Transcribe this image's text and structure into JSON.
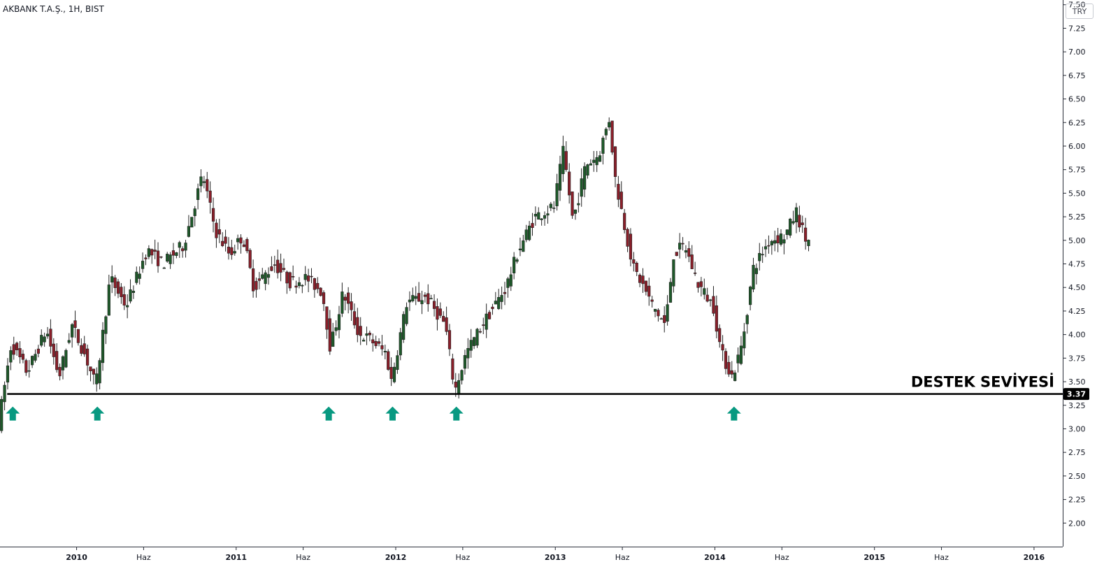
{
  "header": {
    "symbol": "AKBANK T.A.Ş., 1H, BIST",
    "currency": "TRY"
  },
  "colors": {
    "up": "#1e5a2a",
    "down": "#8b1f2a",
    "wick": "#222222",
    "arrow": "#089981",
    "support": "#000000",
    "axis": "#d1d4dc"
  },
  "chart_data": {
    "type": "candlestick",
    "title": "",
    "y_ticks": [
      "2.00",
      "2.25",
      "2.50",
      "2.75",
      "3.00",
      "3.25",
      "3.50",
      "3.75",
      "4.00",
      "4.25",
      "4.50",
      "4.75",
      "5.00",
      "5.25",
      "5.50",
      "5.75",
      "6.00",
      "6.25",
      "6.50",
      "6.75",
      "7.00",
      "7.25",
      "7.50"
    ],
    "ylim": [
      1.75,
      7.55
    ],
    "x_ticks": [
      {
        "label": "2010",
        "t": 2010.0,
        "year": true
      },
      {
        "label": "Haz",
        "t": 2010.42,
        "year": false
      },
      {
        "label": "2011",
        "t": 2011.0,
        "year": true
      },
      {
        "label": "Haz",
        "t": 2011.42,
        "year": false
      },
      {
        "label": "2012",
        "t": 2012.0,
        "year": true
      },
      {
        "label": "Haz",
        "t": 2012.42,
        "year": false
      },
      {
        "label": "2013",
        "t": 2013.0,
        "year": true
      },
      {
        "label": "Haz",
        "t": 2013.42,
        "year": false
      },
      {
        "label": "2014",
        "t": 2014.0,
        "year": true
      },
      {
        "label": "Haz",
        "t": 2014.42,
        "year": false
      },
      {
        "label": "2015",
        "t": 2015.0,
        "year": true
      },
      {
        "label": "Haz",
        "t": 2015.42,
        "year": false
      },
      {
        "label": "2016",
        "t": 2016.0,
        "year": true
      }
    ],
    "xlim": [
      2009.52,
      2016.18
    ],
    "support": {
      "label": "DESTEK SEVİYESİ",
      "value": 3.37,
      "value_label": "3.37"
    },
    "arrows_t": [
      2009.6,
      2010.13,
      2011.58,
      2011.98,
      2012.38,
      2014.12
    ],
    "anchors": [
      [
        2009.52,
        3.05
      ],
      [
        2009.6,
        3.9
      ],
      [
        2009.7,
        3.6
      ],
      [
        2009.82,
        4.05
      ],
      [
        2009.9,
        3.55
      ],
      [
        2009.98,
        4.1
      ],
      [
        2010.07,
        3.75
      ],
      [
        2010.13,
        3.45
      ],
      [
        2010.22,
        4.6
      ],
      [
        2010.32,
        4.3
      ],
      [
        2010.45,
        4.9
      ],
      [
        2010.55,
        4.75
      ],
      [
        2010.68,
        4.95
      ],
      [
        2010.8,
        5.7
      ],
      [
        2010.88,
        5.1
      ],
      [
        2010.97,
        4.85
      ],
      [
        2011.05,
        5.05
      ],
      [
        2011.12,
        4.5
      ],
      [
        2011.25,
        4.75
      ],
      [
        2011.35,
        4.55
      ],
      [
        2011.45,
        4.6
      ],
      [
        2011.55,
        4.45
      ],
      [
        2011.6,
        3.85
      ],
      [
        2011.68,
        4.45
      ],
      [
        2011.78,
        4.0
      ],
      [
        2011.85,
        3.95
      ],
      [
        2011.95,
        3.8
      ],
      [
        2011.98,
        3.5
      ],
      [
        2012.08,
        4.35
      ],
      [
        2012.2,
        4.4
      ],
      [
        2012.32,
        4.1
      ],
      [
        2012.38,
        3.4
      ],
      [
        2012.45,
        3.8
      ],
      [
        2012.55,
        4.1
      ],
      [
        2012.7,
        4.5
      ],
      [
        2012.78,
        4.9
      ],
      [
        2012.88,
        5.25
      ],
      [
        2013.0,
        5.35
      ],
      [
        2013.06,
        5.95
      ],
      [
        2013.12,
        5.2
      ],
      [
        2013.2,
        5.8
      ],
      [
        2013.28,
        5.9
      ],
      [
        2013.35,
        6.3
      ],
      [
        2013.38,
        5.7
      ],
      [
        2013.45,
        5.1
      ],
      [
        2013.5,
        4.7
      ],
      [
        2013.55,
        4.55
      ],
      [
        2013.62,
        4.3
      ],
      [
        2013.7,
        4.1
      ],
      [
        2013.75,
        4.85
      ],
      [
        2013.82,
        4.95
      ],
      [
        2013.9,
        4.55
      ],
      [
        2014.0,
        4.3
      ],
      [
        2014.05,
        3.8
      ],
      [
        2014.12,
        3.55
      ],
      [
        2014.18,
        3.9
      ],
      [
        2014.25,
        4.7
      ],
      [
        2014.35,
        5.0
      ],
      [
        2014.45,
        5.05
      ],
      [
        2014.52,
        5.3
      ],
      [
        2014.58,
        5.0
      ]
    ]
  }
}
